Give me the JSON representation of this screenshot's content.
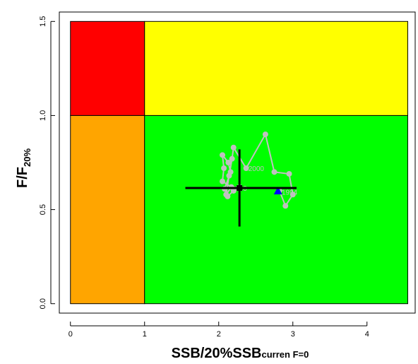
{
  "chart_data": {
    "type": "scatter",
    "title": "",
    "xlabel": {
      "main": "SSB/20%SSB",
      "subscript": "curren F=0"
    },
    "ylabel": {
      "main": "F/F",
      "subscript": "20%"
    },
    "xlim": [
      -0.15,
      4.65
    ],
    "ylim": [
      -0.05,
      1.55
    ],
    "x_ticks": [
      0,
      1,
      2,
      3,
      4
    ],
    "y_ticks": [
      0.0,
      0.5,
      1.0,
      1.5
    ],
    "x_tick_labels": [
      "0",
      "1",
      "2",
      "3",
      "4"
    ],
    "y_tick_labels": [
      "0.0",
      "0.5",
      "1.0",
      "1.5"
    ],
    "grid": false,
    "zones": [
      {
        "name": "overfished-overfishing",
        "x": [
          0,
          1
        ],
        "y": [
          1,
          1.5
        ],
        "color": "#ff0000"
      },
      {
        "name": "overfishing",
        "x": [
          1,
          4.55
        ],
        "y": [
          1,
          1.5
        ],
        "color": "#ffff00"
      },
      {
        "name": "overfished",
        "x": [
          0,
          1
        ],
        "y": [
          0,
          1
        ],
        "color": "#ffa500"
      },
      {
        "name": "healthy",
        "x": [
          1,
          4.55
        ],
        "y": [
          0,
          1
        ],
        "color": "#00ff00"
      }
    ],
    "trajectory": {
      "color": "#c0c0c0",
      "points": [
        [
          2.82,
          0.6
        ],
        [
          2.9,
          0.52
        ],
        [
          3.0,
          0.58
        ],
        [
          2.95,
          0.69
        ],
        [
          2.75,
          0.7
        ],
        [
          2.63,
          0.9
        ],
        [
          2.37,
          0.72
        ],
        [
          2.2,
          0.83
        ],
        [
          2.18,
          0.77
        ],
        [
          2.14,
          0.68
        ],
        [
          2.1,
          0.58
        ],
        [
          2.17,
          0.62
        ],
        [
          2.05,
          0.65
        ],
        [
          2.07,
          0.72
        ],
        [
          2.05,
          0.79
        ],
        [
          2.13,
          0.75
        ],
        [
          2.16,
          0.7
        ],
        [
          2.08,
          0.61
        ],
        [
          2.12,
          0.57
        ],
        [
          2.2,
          0.6
        ],
        [
          2.28,
          0.62
        ]
      ]
    },
    "annotations": [
      {
        "text": "1994",
        "x": 2.85,
        "y": 0.595
      },
      {
        "text": "2000",
        "x": 2.4,
        "y": 0.72
      },
      {
        "text": "2010",
        "x": 2.17,
        "y": 0.615
      }
    ],
    "start_marker": {
      "x": 2.8,
      "y": 0.6,
      "shape": "triangle",
      "color": "#0000ff"
    },
    "current_point": {
      "x": 2.28,
      "y": 0.615,
      "x_interval": [
        1.55,
        3.05
      ],
      "y_interval": [
        0.41,
        0.82
      ],
      "color": "#000000"
    }
  }
}
